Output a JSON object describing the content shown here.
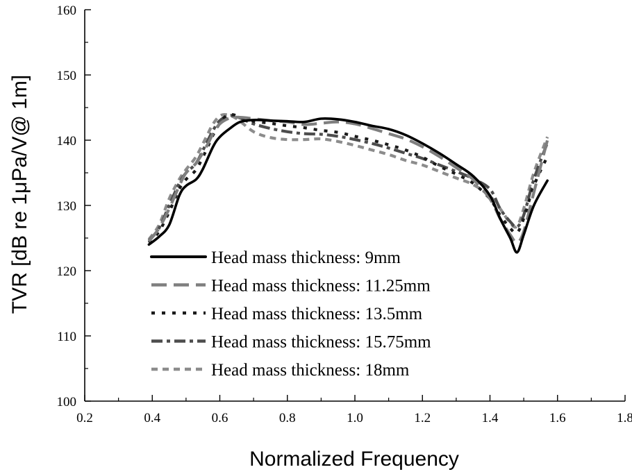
{
  "chart_data": {
    "type": "line",
    "title": "",
    "xlabel": "Normalized Frequency",
    "ylabel": "TVR [dB re 1μPa/V@ 1m]",
    "xlim": [
      0.2,
      1.8
    ],
    "ylim": [
      100,
      160
    ],
    "xticks": [
      "0.2",
      "0.4",
      "0.6",
      "0.8",
      "1.0",
      "1.2",
      "1.4",
      "1.6",
      "1.8"
    ],
    "yticks": [
      "100",
      "110",
      "120",
      "130",
      "140",
      "150",
      "160"
    ],
    "grid": false,
    "legend_position": "bottom-left",
    "series": [
      {
        "name": "Head mass thickness: 9mm",
        "color": "#000000",
        "style": "solid",
        "x": [
          0.39,
          0.42,
          0.45,
          0.48,
          0.5,
          0.53,
          0.55,
          0.58,
          0.6,
          0.63,
          0.66,
          0.7,
          0.75,
          0.8,
          0.85,
          0.9,
          0.95,
          1.0,
          1.05,
          1.1,
          1.15,
          1.2,
          1.25,
          1.3,
          1.35,
          1.4,
          1.43,
          1.46,
          1.48,
          1.5,
          1.53,
          1.57
        ],
        "y": [
          124,
          125.2,
          127,
          131.5,
          133,
          134,
          135.6,
          139,
          140.5,
          141.8,
          142.8,
          143.1,
          143,
          142.9,
          142.8,
          143.3,
          143.2,
          142.8,
          142.2,
          141.7,
          140.8,
          139.5,
          138,
          136.3,
          134.5,
          131.5,
          128,
          125,
          122.8,
          125.5,
          130,
          133.8
        ]
      },
      {
        "name": "Head mass thickness: 11.25mm",
        "color": "#7f7f7f",
        "style": "long-dash",
        "x": [
          0.39,
          0.42,
          0.45,
          0.48,
          0.5,
          0.53,
          0.56,
          0.58,
          0.6,
          0.63,
          0.66,
          0.7,
          0.75,
          0.8,
          0.85,
          0.9,
          0.95,
          1.0,
          1.05,
          1.1,
          1.15,
          1.2,
          1.25,
          1.3,
          1.35,
          1.4,
          1.43,
          1.46,
          1.48,
          1.5,
          1.53,
          1.57
        ],
        "y": [
          124.5,
          126.5,
          129.5,
          133,
          135,
          136.5,
          139,
          141,
          142.5,
          143.4,
          143.5,
          143.3,
          143,
          142.8,
          142.4,
          142.6,
          142.8,
          142.5,
          141.8,
          141,
          140.2,
          139,
          137.5,
          135.8,
          134,
          131,
          128,
          125.5,
          124.3,
          126,
          132,
          140
        ]
      },
      {
        "name": "Head mass thickness: 13.5mm",
        "color": "#1a1a1a",
        "style": "dot",
        "x": [
          0.39,
          0.42,
          0.45,
          0.48,
          0.5,
          0.53,
          0.56,
          0.58,
          0.6,
          0.62,
          0.64,
          0.66,
          0.7,
          0.75,
          0.8,
          0.85,
          0.9,
          0.95,
          1.0,
          1.05,
          1.1,
          1.15,
          1.2,
          1.25,
          1.3,
          1.35,
          1.4,
          1.43,
          1.46,
          1.48,
          1.5,
          1.53,
          1.57
        ],
        "y": [
          124.3,
          126,
          129,
          132.5,
          134,
          135.5,
          138.5,
          140.8,
          142.6,
          143.8,
          143.9,
          143.5,
          142.9,
          142.6,
          142.2,
          141.9,
          141.5,
          141.2,
          140.6,
          140,
          139.3,
          138.5,
          137.4,
          136,
          134.8,
          133.4,
          131,
          128.5,
          126.5,
          125.8,
          128,
          133,
          137.5
        ]
      },
      {
        "name": "Head mass thickness: 15.75mm",
        "color": "#4d4d4d",
        "style": "dash-dot",
        "x": [
          0.39,
          0.42,
          0.45,
          0.48,
          0.5,
          0.53,
          0.56,
          0.58,
          0.6,
          0.63,
          0.66,
          0.7,
          0.75,
          0.8,
          0.85,
          0.9,
          0.95,
          1.0,
          1.05,
          1.1,
          1.15,
          1.2,
          1.25,
          1.3,
          1.35,
          1.4,
          1.43,
          1.46,
          1.48,
          1.5,
          1.53,
          1.57
        ],
        "y": [
          124.6,
          126.5,
          130,
          133.4,
          135,
          136.5,
          139.5,
          141.5,
          143,
          143.8,
          143.4,
          142.5,
          141.8,
          141.3,
          141,
          140.9,
          140.6,
          140.1,
          139.5,
          138.8,
          138,
          137.2,
          136.2,
          135.2,
          134.1,
          132.5,
          129.5,
          127.5,
          126.7,
          128.5,
          134,
          139.6
        ]
      },
      {
        "name": "Head mass thickness: 18mm",
        "color": "#8c8c8c",
        "style": "short-dash",
        "x": [
          0.39,
          0.42,
          0.45,
          0.48,
          0.5,
          0.53,
          0.56,
          0.58,
          0.6,
          0.62,
          0.65,
          0.7,
          0.75,
          0.8,
          0.85,
          0.9,
          0.95,
          1.0,
          1.05,
          1.1,
          1.15,
          1.2,
          1.25,
          1.3,
          1.35,
          1.4,
          1.43,
          1.46,
          1.48,
          1.5,
          1.53,
          1.57
        ],
        "y": [
          124.8,
          127,
          131,
          134,
          135.5,
          137.5,
          140.5,
          142.5,
          143.7,
          143.9,
          143.3,
          141.3,
          140.4,
          140.1,
          140.1,
          140.2,
          139.8,
          139.2,
          138.5,
          137.8,
          136.9,
          136.2,
          135.2,
          134.2,
          133.2,
          131.4,
          129.5,
          127.3,
          126.8,
          129.5,
          135,
          140.5
        ]
      }
    ]
  }
}
